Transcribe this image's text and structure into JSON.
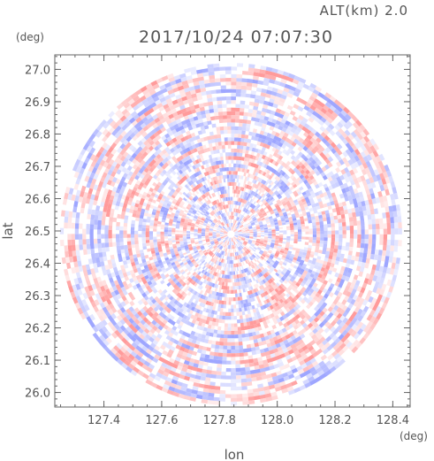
{
  "chart_data": {
    "type": "heatmap",
    "projection": "polar-scan",
    "title": "2017/10/24 07:07:30",
    "subtitle": "ALT(km) 2.0",
    "xlabel": "lon",
    "ylabel": "lat",
    "xunit": "(deg)",
    "yunit": "(deg)",
    "xlim": [
      127.23,
      128.46
    ],
    "ylim": [
      25.955,
      27.045
    ],
    "xticks": [
      127.4,
      127.6,
      127.8,
      128.0,
      128.2,
      128.4
    ],
    "xtick_labels": [
      "127.4",
      "127.6",
      "127.8",
      "128.0",
      "128.2",
      "128.4"
    ],
    "yticks": [
      26.0,
      26.1,
      26.2,
      26.3,
      26.4,
      26.5,
      26.6,
      26.7,
      26.8,
      26.9,
      27.0
    ],
    "ytick_labels": [
      "26.0",
      "26.1",
      "26.2",
      "26.3",
      "26.4",
      "26.5",
      "26.6",
      "26.7",
      "26.8",
      "26.9",
      "27.0"
    ],
    "scan_center": {
      "lon": 127.84,
      "lat": 26.49
    },
    "scan_radius_deg_lat": 0.53,
    "colors": {
      "positive": "#ff9b9b",
      "negative": "#9ea6ff",
      "neutral": "#ffffff",
      "frame": "#666666"
    },
    "grid": false,
    "legend": "none"
  }
}
